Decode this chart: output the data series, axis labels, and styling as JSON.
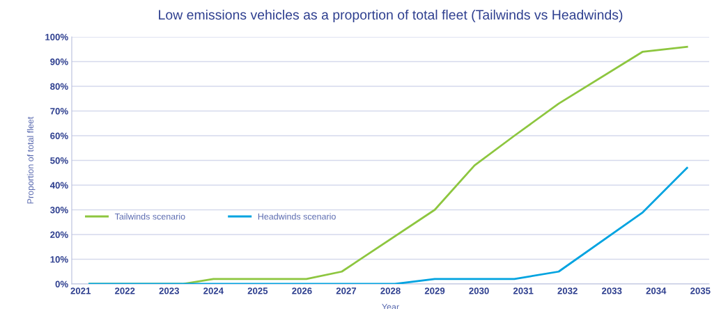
{
  "chart_data": {
    "type": "line",
    "title": "Low emissions vehicles as a proportion of total fleet (Tailwinds vs Headwinds)",
    "xlabel": "Year",
    "ylabel": "Proportion of total fleet",
    "series": [
      {
        "name": "Tailwinds scenario",
        "color": "#8dc63f",
        "x": [
          2021.2,
          2023.3,
          2024.0,
          2026.1,
          2026.9,
          2029.0,
          2029.9,
          2030.8,
          2031.8,
          2033.7,
          2034.7
        ],
        "values": [
          0,
          0,
          2,
          2,
          5,
          30,
          48,
          60,
          73,
          94,
          96
        ]
      },
      {
        "name": "Headwinds scenario",
        "color": "#00a3e0",
        "x": [
          2021.2,
          2028.1,
          2029.0,
          2030.8,
          2031.8,
          2033.7,
          2034.7
        ],
        "values": [
          0,
          0,
          2,
          2,
          5,
          29,
          47
        ]
      }
    ],
    "xlim": [
      2020.8,
      2035.2
    ],
    "xticks": [
      2021,
      2022,
      2023,
      2024,
      2025,
      2026,
      2027,
      2028,
      2029,
      2030,
      2031,
      2032,
      2033,
      2034,
      2035
    ],
    "ylim": [
      0,
      100
    ],
    "yticks": [
      {
        "value": 0,
        "label": "0%"
      },
      {
        "value": 10,
        "label": "10%"
      },
      {
        "value": 20,
        "label": "20%"
      },
      {
        "value": 30,
        "label": "30%"
      },
      {
        "value": 40,
        "label": "40%"
      },
      {
        "value": 50,
        "label": "50%"
      },
      {
        "value": 60,
        "label": "60%"
      },
      {
        "value": 70,
        "label": "70%"
      },
      {
        "value": 80,
        "label": "80%"
      },
      {
        "value": 90,
        "label": "90%"
      },
      {
        "value": 100,
        "label": "100%"
      }
    ],
    "grid": "y",
    "legend": "left",
    "marker": "none",
    "line_style": "solid"
  }
}
